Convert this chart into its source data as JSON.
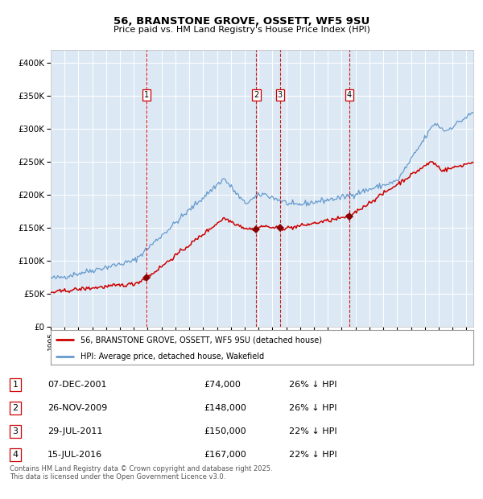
{
  "title": "56, BRANSTONE GROVE, OSSETT, WF5 9SU",
  "subtitle": "Price paid vs. HM Land Registry's House Price Index (HPI)",
  "red_label": "56, BRANSTONE GROVE, OSSETT, WF5 9SU (detached house)",
  "blue_label": "HPI: Average price, detached house, Wakefield",
  "sale_events": [
    {
      "num": 1,
      "date": "07-DEC-2001",
      "price": 74000,
      "pct": "26%",
      "dir": "↓"
    },
    {
      "num": 2,
      "date": "26-NOV-2009",
      "price": 148000,
      "pct": "26%",
      "dir": "↓"
    },
    {
      "num": 3,
      "date": "29-JUL-2011",
      "price": 150000,
      "pct": "22%",
      "dir": "↓"
    },
    {
      "num": 4,
      "date": "15-JUL-2016",
      "price": 167000,
      "pct": "22%",
      "dir": "↓"
    }
  ],
  "footnote": "Contains HM Land Registry data © Crown copyright and database right 2025.\nThis data is licensed under the Open Government Licence v3.0.",
  "ylim": [
    0,
    420000
  ],
  "yticks": [
    0,
    50000,
    100000,
    150000,
    200000,
    250000,
    300000,
    350000,
    400000
  ],
  "background_color": "#dce9f5",
  "red_color": "#cc0000",
  "blue_color": "#6699cc",
  "grid_color": "#ffffff",
  "vline_color": "#cc0000",
  "sale_marker_color": "#880000",
  "sale_years": [
    2001.917,
    2009.833,
    2011.542,
    2016.542
  ],
  "sale_prices": [
    74000,
    148000,
    150000,
    167000
  ],
  "xstart": 1995.0,
  "xend": 2025.5
}
